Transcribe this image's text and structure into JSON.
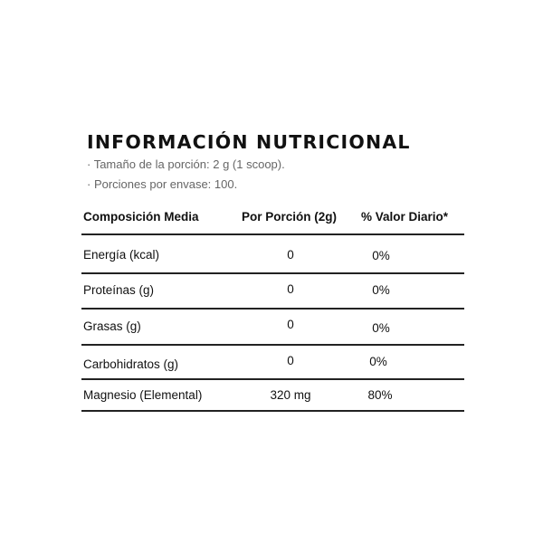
{
  "title": "INFORMACIÓN NUTRICIONAL",
  "serving_size": "· Tamaño de la porción: 2 g (1 scoop).",
  "servings_per_container": "· Porciones por envase: 100.",
  "table": {
    "headers": [
      "Composición Media",
      "Por Porción (2g)",
      "% Valor Diario*"
    ],
    "rows": [
      [
        "Energía (kcal)",
        "0",
        "0%"
      ],
      [
        "Proteínas (g)",
        "0",
        "0%"
      ],
      [
        "Grasas (g)",
        "0",
        "0%"
      ],
      [
        "Carbohidratos (g)",
        "0",
        "0%"
      ],
      [
        "Magnesio (Elemental)",
        "320 mg",
        "80%"
      ]
    ]
  }
}
